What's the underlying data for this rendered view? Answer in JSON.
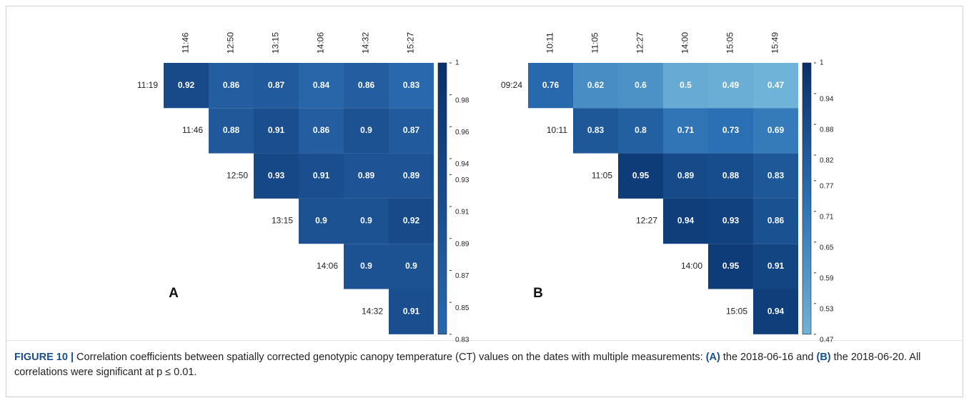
{
  "chart_data": [
    {
      "type": "heatmap",
      "panel": "A",
      "columns": [
        "11:46",
        "12:50",
        "13:15",
        "14:06",
        "14:32",
        "15:27"
      ],
      "rows": [
        "11:19",
        "11:46",
        "12:50",
        "13:15",
        "14:06",
        "14:32"
      ],
      "values": [
        [
          0.92,
          0.86,
          0.87,
          0.84,
          0.86,
          0.83
        ],
        [
          null,
          0.88,
          0.91,
          0.86,
          0.9,
          0.87
        ],
        [
          null,
          null,
          0.93,
          0.91,
          0.89,
          0.89
        ],
        [
          null,
          null,
          null,
          0.9,
          0.9,
          0.92
        ],
        [
          null,
          null,
          null,
          null,
          0.9,
          0.9
        ],
        [
          null,
          null,
          null,
          null,
          null,
          0.91
        ]
      ],
      "clim": [
        0.83,
        1
      ],
      "cticks": [
        1,
        0.98,
        0.96,
        0.94,
        0.93,
        0.91,
        0.89,
        0.87,
        0.85,
        0.83
      ],
      "colorscale": [
        "#2a68ad",
        "#08306b"
      ]
    },
    {
      "type": "heatmap",
      "panel": "B",
      "columns": [
        "10:11",
        "11:05",
        "12:27",
        "14:00",
        "15:05",
        "15:49"
      ],
      "rows": [
        "09:24",
        "10:11",
        "11:05",
        "12:27",
        "14:00",
        "15:05"
      ],
      "values": [
        [
          0.76,
          0.62,
          0.6,
          0.5,
          0.49,
          0.47
        ],
        [
          null,
          0.83,
          0.8,
          0.71,
          0.73,
          0.69
        ],
        [
          null,
          null,
          0.95,
          0.89,
          0.88,
          0.83
        ],
        [
          null,
          null,
          null,
          0.94,
          0.93,
          0.86
        ],
        [
          null,
          null,
          null,
          null,
          0.95,
          0.91
        ],
        [
          null,
          null,
          null,
          null,
          null,
          0.94
        ]
      ],
      "clim": [
        0.47,
        1
      ],
      "cticks": [
        1,
        0.94,
        0.88,
        0.82,
        0.77,
        0.71,
        0.65,
        0.59,
        0.53,
        0.47
      ],
      "colorscale": [
        "#6fb3d9",
        "#2a6fb3",
        "#08306b"
      ]
    }
  ],
  "caption": [
    "FIGURE 10 |",
    " Correlation coefficients between spatially corrected genotypic canopy temperature (CT) values on the dates with multiple measurements: ",
    "(A)",
    " the 2018-06-16 and ",
    "(B)",
    " the 2018-06-20. All correlations were significant at p ≤ 0.01."
  ]
}
